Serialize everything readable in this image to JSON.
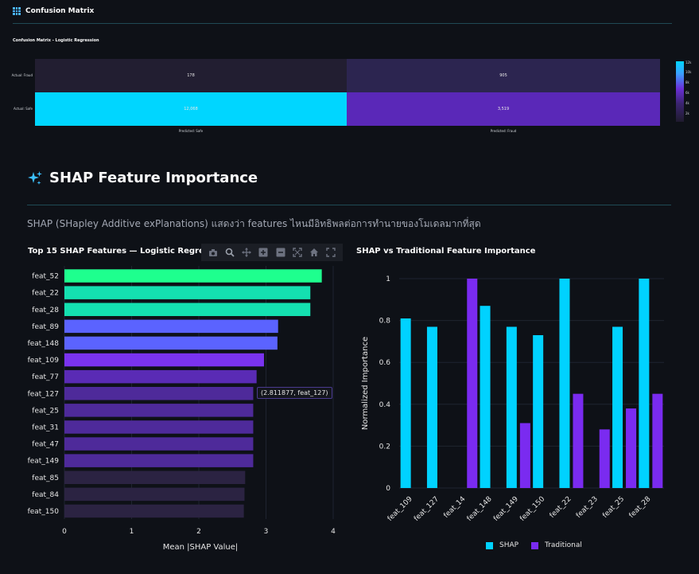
{
  "confusion_section": {
    "header": "Confusion Matrix",
    "chart_title": "Confusion Matrix - Logistic Regression",
    "row_labels": [
      "Actual: Fraud",
      "Actual: Safe"
    ],
    "col_labels": [
      "Predicted: Safe",
      "Predicted: Fraud"
    ],
    "cells": [
      [
        "178",
        "905"
      ],
      [
        "12,068",
        "3,519"
      ]
    ],
    "colorbar_ticks": [
      "12k",
      "10k",
      "8k",
      "6k",
      "4k",
      "2k"
    ]
  },
  "shap_section": {
    "title": "SHAP Feature Importance",
    "description": "SHAP (SHapley Additive exPlanations) แสดงว่า features ไหนมีอิทธิพลต่อการทำนายของโมเดลมากที่สุด"
  },
  "modebar": {
    "icons": [
      "camera-icon",
      "zoom-icon",
      "pan-icon",
      "zoom-in-icon",
      "zoom-out-icon",
      "autoscale-icon",
      "home-icon",
      "fullscreen-icon"
    ]
  },
  "tooltip": {
    "text": "(2.811877, feat_127)"
  },
  "chart_data": [
    {
      "type": "bar",
      "orientation": "horizontal",
      "title": "Top 15 SHAP Features — Logistic Regression",
      "xlabel": "Mean |SHAP Value|",
      "ylabel": "",
      "xlim": [
        0,
        4.2
      ],
      "xticks": [
        "0",
        "1",
        "2",
        "3",
        "4"
      ],
      "categories": [
        "feat_52",
        "feat_22",
        "feat_28",
        "feat_89",
        "feat_148",
        "feat_109",
        "feat_77",
        "feat_127",
        "feat_25",
        "feat_31",
        "feat_47",
        "feat_149",
        "feat_85",
        "feat_84",
        "feat_150"
      ],
      "values": [
        3.83,
        3.66,
        3.66,
        3.18,
        3.17,
        2.97,
        2.86,
        2.81,
        2.81,
        2.81,
        2.81,
        2.81,
        2.69,
        2.68,
        2.67
      ],
      "colors": [
        "#1eff8e",
        "#14e0b0",
        "#14e0b0",
        "#5b63ff",
        "#5b63ff",
        "#7a33ef",
        "#5a2bb5",
        "#4e2a9a",
        "#4e2a9a",
        "#4e2a9a",
        "#4e2a9a",
        "#4e2a9a",
        "#2b2342",
        "#2b2342",
        "#2b2342"
      ]
    },
    {
      "type": "bar",
      "title": "SHAP vs Traditional Feature Importance",
      "xlabel": "",
      "ylabel": "Normalized Importance",
      "ylim": [
        0,
        1
      ],
      "yticks": [
        "0",
        "0.2",
        "0.4",
        "0.6",
        "0.8",
        "1"
      ],
      "categories": [
        "feat_109",
        "feat_127",
        "feat_14",
        "feat_148",
        "feat_149",
        "feat_150",
        "feat_22",
        "feat_23",
        "feat_25",
        "feat_28"
      ],
      "series": [
        {
          "name": "SHAP",
          "color": "#00d2ff",
          "values": [
            0.81,
            0.77,
            0,
            0.87,
            0.77,
            0.73,
            1.0,
            0,
            0.77,
            1.0
          ]
        },
        {
          "name": "Traditional",
          "color": "#7a2bf0",
          "values": [
            0,
            0,
            1.0,
            0,
            0.31,
            0,
            0.45,
            0.28,
            0.38,
            0.45
          ]
        }
      ],
      "legend": "bottom"
    }
  ]
}
